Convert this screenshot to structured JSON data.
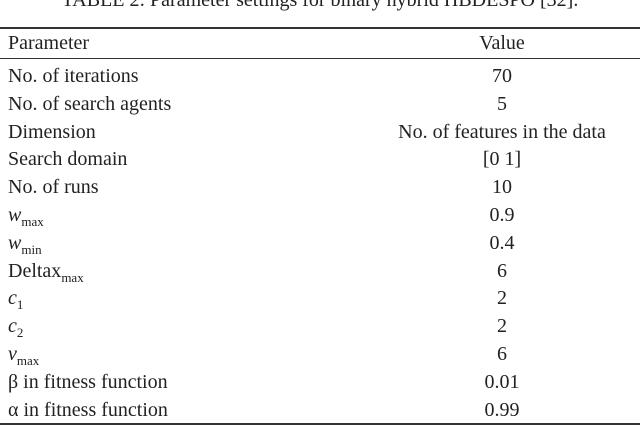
{
  "caption": "TABLE 2: Parameter settings for binary hybrid HBDESPO [32].",
  "table": {
    "header": [
      "Parameter",
      "Value"
    ],
    "rows": [
      [
        "No. of iterations",
        "70"
      ],
      [
        "No. of search agents",
        "5"
      ],
      [
        "Dimension",
        "No. of features in the data"
      ],
      [
        "Search domain",
        "[0 1]"
      ],
      [
        "No. of runs",
        "10"
      ],
      [
        {
          "base": "w",
          "sub": "max"
        },
        "0.9"
      ],
      [
        {
          "base": "w",
          "sub": "min"
        },
        "0.4"
      ],
      [
        {
          "base": "Deltax",
          "sub": "max"
        },
        "6"
      ],
      [
        {
          "base": "c",
          "sub": "1"
        },
        "2"
      ],
      [
        {
          "base": "c",
          "sub": "2"
        },
        "2"
      ],
      [
        {
          "base": "v",
          "sub": "max"
        },
        "6"
      ],
      [
        "β in fitness function",
        "0.01"
      ],
      [
        "α in fitness function",
        "0.99"
      ]
    ]
  }
}
